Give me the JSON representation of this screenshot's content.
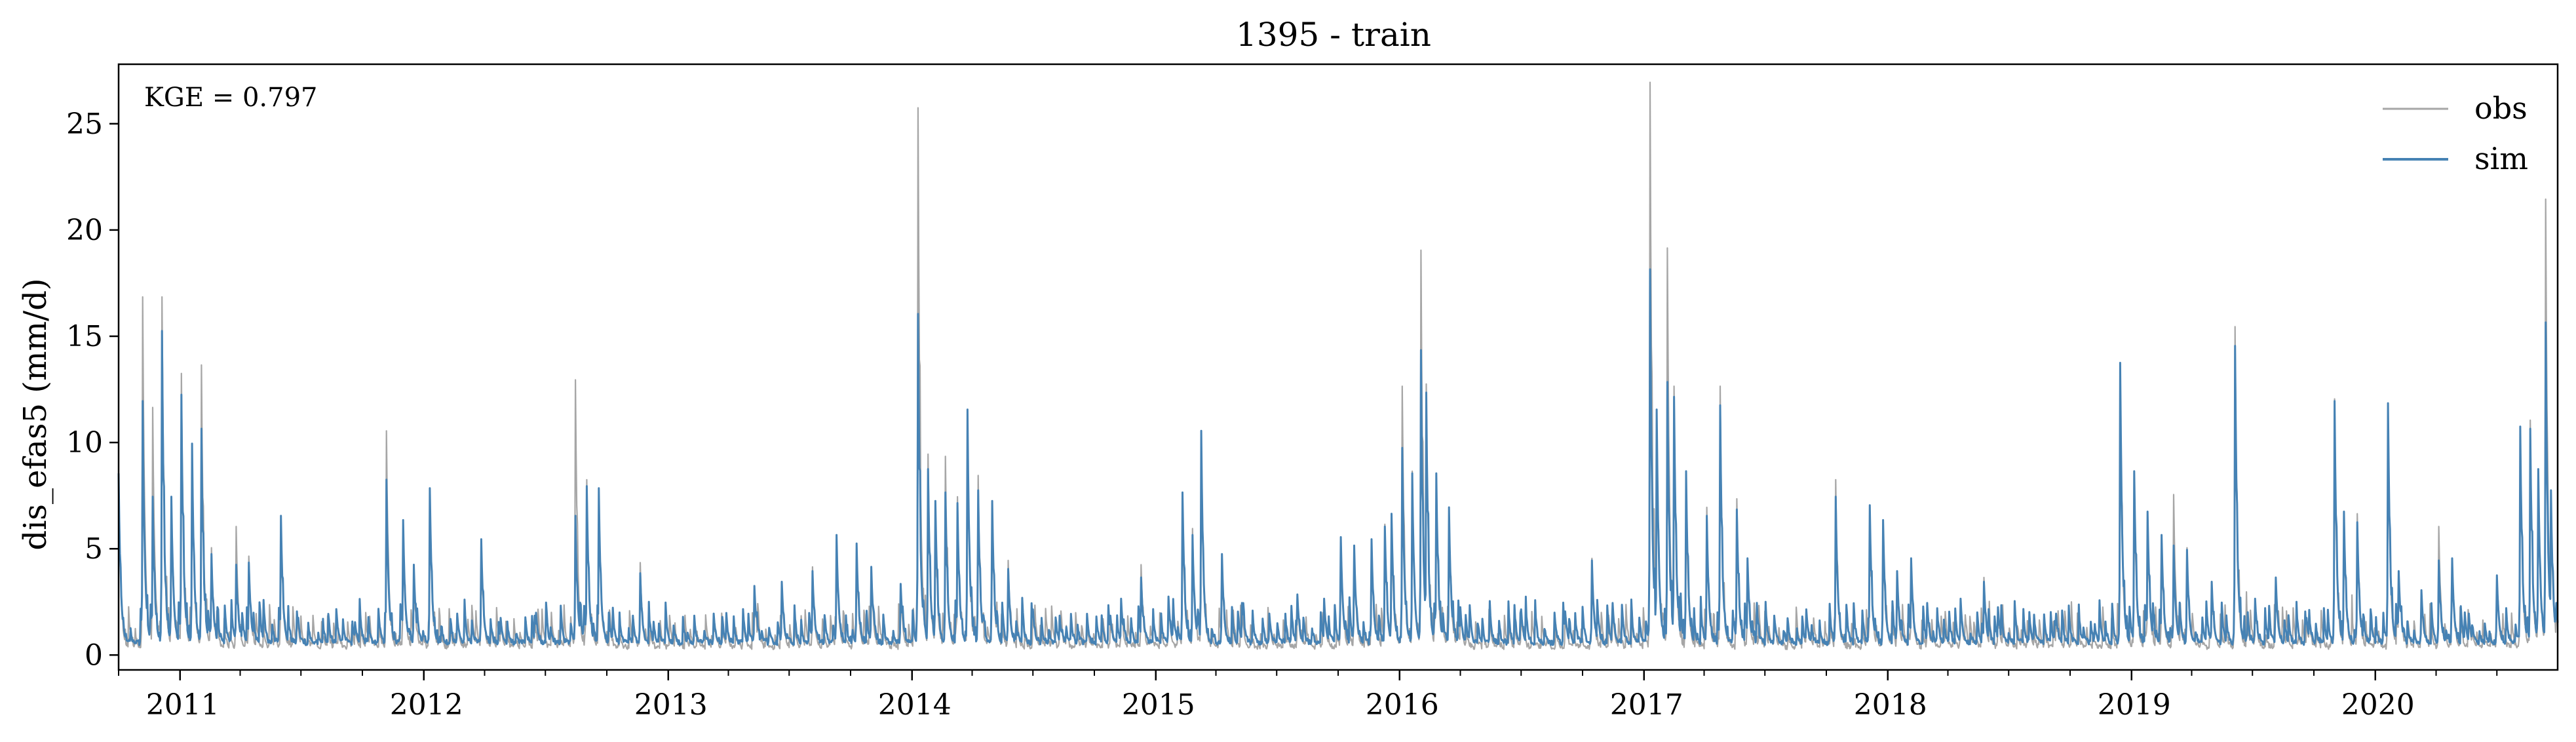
{
  "chart_data": {
    "type": "line",
    "title": "1395 - train",
    "ylabel": "dis_efas5 (mm/d)",
    "xlabel": "",
    "xlim": [
      "2010-10-01",
      "2020-09-30"
    ],
    "ylim": [
      -0.7,
      27.8
    ],
    "yticks": [
      0,
      5,
      10,
      15,
      20,
      25
    ],
    "xticks": [
      "2011",
      "2012",
      "2013",
      "2014",
      "2015",
      "2016",
      "2017",
      "2018",
      "2019",
      "2020"
    ],
    "grid": false,
    "legend_position": "top-right",
    "annotation": "KGE = 0.797",
    "series": [
      {
        "name": "obs",
        "color": "#a6a6a6",
        "peaks": [
          [
            "2010-10-01",
            8.0
          ],
          [
            "2010-11-06",
            16.6
          ],
          [
            "2010-11-21",
            11.4
          ],
          [
            "2010-12-05",
            16.6
          ],
          [
            "2010-12-19",
            6.9
          ],
          [
            "2011-01-03",
            13.0
          ],
          [
            "2011-01-19",
            9.5
          ],
          [
            "2011-02-02",
            13.4
          ],
          [
            "2011-02-17",
            4.8
          ],
          [
            "2011-03-26",
            5.8
          ],
          [
            "2011-04-14",
            4.4
          ],
          [
            "2011-06-01",
            6.3
          ],
          [
            "2011-06-25",
            1.8
          ],
          [
            "2011-09-20",
            1.2
          ],
          [
            "2011-11-06",
            10.3
          ],
          [
            "2011-12-01",
            5.9
          ],
          [
            "2011-12-17",
            3.6
          ],
          [
            "2012-01-10",
            7.4
          ],
          [
            "2012-02-20",
            1.7
          ],
          [
            "2012-03-27",
            5.0
          ],
          [
            "2012-04-25",
            1.4
          ],
          [
            "2012-06-15",
            1.5
          ],
          [
            "2012-08-15",
            12.7
          ],
          [
            "2012-09-01",
            8.0
          ],
          [
            "2012-09-19",
            7.6
          ],
          [
            "2012-11-20",
            4.1
          ],
          [
            "2013-03-10",
            1.6
          ],
          [
            "2013-05-10",
            2.9
          ],
          [
            "2013-06-20",
            3.2
          ],
          [
            "2013-08-05",
            3.9
          ],
          [
            "2013-09-10",
            5.2
          ],
          [
            "2013-10-10",
            4.9
          ],
          [
            "2013-11-01",
            3.9
          ],
          [
            "2013-12-15",
            3.1
          ],
          [
            "2014-01-10",
            25.5
          ],
          [
            "2014-01-25",
            9.2
          ],
          [
            "2014-02-05",
            6.5
          ],
          [
            "2014-02-20",
            9.1
          ],
          [
            "2014-03-10",
            7.2
          ],
          [
            "2014-03-25",
            10.8
          ],
          [
            "2014-04-10",
            8.2
          ],
          [
            "2014-05-01",
            7.0
          ],
          [
            "2014-05-25",
            4.2
          ],
          [
            "2014-07-01",
            1.9
          ],
          [
            "2014-08-10",
            1.6
          ],
          [
            "2014-09-20",
            1.2
          ],
          [
            "2014-10-25",
            1.5
          ],
          [
            "2014-11-10",
            2.3
          ],
          [
            "2014-12-10",
            4.0
          ],
          [
            "2015-01-20",
            2.5
          ],
          [
            "2015-02-10",
            7.2
          ],
          [
            "2015-02-25",
            5.7
          ],
          [
            "2015-03-10",
            10.2
          ],
          [
            "2015-04-10",
            4.5
          ],
          [
            "2015-05-10",
            2.1
          ],
          [
            "2015-06-20",
            1.6
          ],
          [
            "2015-08-01",
            2.5
          ],
          [
            "2015-09-10",
            2.3
          ],
          [
            "2015-10-05",
            5.2
          ],
          [
            "2015-10-25",
            4.9
          ],
          [
            "2015-11-20",
            5.2
          ],
          [
            "2015-12-10",
            5.9
          ],
          [
            "2015-12-20",
            6.3
          ],
          [
            "2016-01-05",
            12.4
          ],
          [
            "2016-01-20",
            8.4
          ],
          [
            "2016-02-02",
            18.8
          ],
          [
            "2016-02-10",
            12.5
          ],
          [
            "2016-02-25",
            8.3
          ],
          [
            "2016-03-15",
            6.6
          ],
          [
            "2016-04-01",
            1.9
          ],
          [
            "2016-05-15",
            1.5
          ],
          [
            "2016-07-01",
            1.8
          ],
          [
            "2016-09-05",
            1.7
          ],
          [
            "2016-10-15",
            4.3
          ],
          [
            "2016-11-15",
            2.1
          ],
          [
            "2017-01-10",
            26.7
          ],
          [
            "2017-01-20",
            11.3
          ],
          [
            "2017-02-05",
            18.9
          ],
          [
            "2017-02-15",
            12.4
          ],
          [
            "2017-03-05",
            8.3
          ],
          [
            "2017-04-05",
            6.7
          ],
          [
            "2017-04-25",
            12.4
          ],
          [
            "2017-05-20",
            7.1
          ],
          [
            "2017-06-05",
            4.3
          ],
          [
            "2017-07-15",
            1.5
          ],
          [
            "2017-09-01",
            1.8
          ],
          [
            "2017-10-15",
            8.0
          ],
          [
            "2017-12-05",
            6.5
          ],
          [
            "2017-12-25",
            5.9
          ],
          [
            "2018-01-15",
            3.6
          ],
          [
            "2018-02-05",
            4.2
          ],
          [
            "2018-03-01",
            2.1
          ],
          [
            "2018-04-20",
            2.3
          ],
          [
            "2018-05-25",
            3.4
          ],
          [
            "2018-06-15",
            1.9
          ],
          [
            "2018-08-01",
            1.5
          ],
          [
            "2018-09-10",
            1.6
          ],
          [
            "2018-12-15",
            13.4
          ],
          [
            "2019-01-05",
            8.3
          ],
          [
            "2019-01-25",
            6.3
          ],
          [
            "2019-02-15",
            5.3
          ],
          [
            "2019-03-05",
            7.3
          ],
          [
            "2019-03-25",
            4.8
          ],
          [
            "2019-05-01",
            3.1
          ],
          [
            "2019-06-05",
            15.2
          ],
          [
            "2019-07-05",
            2.3
          ],
          [
            "2019-08-05",
            3.3
          ],
          [
            "2019-09-20",
            1.4
          ],
          [
            "2019-11-01",
            11.8
          ],
          [
            "2019-11-15",
            6.4
          ],
          [
            "2019-12-05",
            6.4
          ],
          [
            "2020-01-20",
            11.3
          ],
          [
            "2020-02-05",
            3.6
          ],
          [
            "2020-03-10",
            2.7
          ],
          [
            "2020-04-05",
            5.8
          ],
          [
            "2020-04-25",
            4.2
          ],
          [
            "2020-05-20",
            1.6
          ],
          [
            "2020-07-01",
            3.4
          ],
          [
            "2020-08-05",
            10.5
          ],
          [
            "2020-08-20",
            10.8
          ],
          [
            "2020-09-01",
            8.3
          ],
          [
            "2020-09-12",
            21.2
          ],
          [
            "2020-09-20",
            7.3
          ],
          [
            "2020-09-28",
            2.0
          ]
        ]
      },
      {
        "name": "sim",
        "color": "#4682b4",
        "peaks": [
          [
            "2010-10-01",
            8.1
          ],
          [
            "2010-11-06",
            11.5
          ],
          [
            "2010-11-21",
            7.0
          ],
          [
            "2010-12-05",
            14.8
          ],
          [
            "2010-12-19",
            7.0
          ],
          [
            "2011-01-03",
            11.8
          ],
          [
            "2011-01-19",
            9.5
          ],
          [
            "2011-02-02",
            10.2
          ],
          [
            "2011-02-17",
            4.3
          ],
          [
            "2011-03-26",
            3.8
          ],
          [
            "2011-04-14",
            3.9
          ],
          [
            "2011-06-01",
            6.1
          ],
          [
            "2011-06-25",
            1.6
          ],
          [
            "2011-09-20",
            1.1
          ],
          [
            "2011-11-06",
            7.8
          ],
          [
            "2011-12-01",
            5.9
          ],
          [
            "2011-12-17",
            3.8
          ],
          [
            "2012-01-10",
            7.4
          ],
          [
            "2012-02-20",
            1.5
          ],
          [
            "2012-03-27",
            5.0
          ],
          [
            "2012-04-25",
            1.3
          ],
          [
            "2012-06-15",
            1.4
          ],
          [
            "2012-08-15",
            6.1
          ],
          [
            "2012-09-01",
            7.5
          ],
          [
            "2012-09-19",
            7.4
          ],
          [
            "2012-11-20",
            3.4
          ],
          [
            "2013-03-10",
            1.5
          ],
          [
            "2013-05-10",
            2.8
          ],
          [
            "2013-06-20",
            3.0
          ],
          [
            "2013-08-05",
            3.5
          ],
          [
            "2013-09-10",
            5.2
          ],
          [
            "2013-10-10",
            4.8
          ],
          [
            "2013-11-01",
            3.7
          ],
          [
            "2013-12-15",
            2.9
          ],
          [
            "2014-01-10",
            15.6
          ],
          [
            "2014-01-25",
            8.3
          ],
          [
            "2014-02-05",
            6.8
          ],
          [
            "2014-02-20",
            7.2
          ],
          [
            "2014-03-10",
            6.7
          ],
          [
            "2014-03-25",
            11.1
          ],
          [
            "2014-04-10",
            7.3
          ],
          [
            "2014-05-01",
            6.8
          ],
          [
            "2014-05-25",
            3.6
          ],
          [
            "2014-07-01",
            1.7
          ],
          [
            "2014-08-10",
            1.4
          ],
          [
            "2014-09-20",
            1.1
          ],
          [
            "2014-10-25",
            1.4
          ],
          [
            "2014-11-10",
            2.2
          ],
          [
            "2014-12-10",
            3.2
          ],
          [
            "2015-01-20",
            2.3
          ],
          [
            "2015-02-10",
            7.2
          ],
          [
            "2015-02-25",
            5.2
          ],
          [
            "2015-03-10",
            10.1
          ],
          [
            "2015-04-10",
            4.3
          ],
          [
            "2015-05-10",
            2.0
          ],
          [
            "2015-06-20",
            1.5
          ],
          [
            "2015-08-01",
            2.4
          ],
          [
            "2015-09-10",
            2.2
          ],
          [
            "2015-10-05",
            5.1
          ],
          [
            "2015-10-25",
            4.7
          ],
          [
            "2015-11-20",
            5.0
          ],
          [
            "2015-12-10",
            5.6
          ],
          [
            "2015-12-20",
            6.2
          ],
          [
            "2016-01-05",
            9.3
          ],
          [
            "2016-01-20",
            8.1
          ],
          [
            "2016-02-02",
            13.9
          ],
          [
            "2016-02-10",
            11.9
          ],
          [
            "2016-02-25",
            8.1
          ],
          [
            "2016-03-15",
            6.5
          ],
          [
            "2016-04-01",
            1.8
          ],
          [
            "2016-05-15",
            1.4
          ],
          [
            "2016-07-01",
            1.7
          ],
          [
            "2016-09-05",
            1.6
          ],
          [
            "2016-10-15",
            4.0
          ],
          [
            "2016-11-15",
            2.0
          ],
          [
            "2017-01-10",
            17.7
          ],
          [
            "2017-01-20",
            11.1
          ],
          [
            "2017-02-05",
            12.4
          ],
          [
            "2017-02-15",
            11.7
          ],
          [
            "2017-03-05",
            8.2
          ],
          [
            "2017-04-05",
            6.1
          ],
          [
            "2017-04-25",
            11.3
          ],
          [
            "2017-05-20",
            6.4
          ],
          [
            "2017-06-05",
            4.1
          ],
          [
            "2017-07-15",
            1.4
          ],
          [
            "2017-09-01",
            1.7
          ],
          [
            "2017-10-15",
            7.0
          ],
          [
            "2017-12-05",
            6.6
          ],
          [
            "2017-12-25",
            5.9
          ],
          [
            "2018-01-15",
            3.5
          ],
          [
            "2018-02-05",
            4.1
          ],
          [
            "2018-03-01",
            2.0
          ],
          [
            "2018-04-20",
            2.2
          ],
          [
            "2018-05-25",
            3.0
          ],
          [
            "2018-06-15",
            1.8
          ],
          [
            "2018-08-01",
            1.4
          ],
          [
            "2018-09-10",
            1.5
          ],
          [
            "2018-12-15",
            13.3
          ],
          [
            "2019-01-05",
            8.2
          ],
          [
            "2019-01-25",
            6.3
          ],
          [
            "2019-02-15",
            5.2
          ],
          [
            "2019-03-05",
            4.7
          ],
          [
            "2019-03-25",
            4.5
          ],
          [
            "2019-05-01",
            3.0
          ],
          [
            "2019-06-05",
            14.1
          ],
          [
            "2019-07-05",
            2.2
          ],
          [
            "2019-08-05",
            3.2
          ],
          [
            "2019-09-20",
            1.3
          ],
          [
            "2019-11-01",
            11.5
          ],
          [
            "2019-11-15",
            6.3
          ],
          [
            "2019-12-05",
            5.8
          ],
          [
            "2020-01-20",
            11.4
          ],
          [
            "2020-02-05",
            3.5
          ],
          [
            "2020-03-10",
            2.6
          ],
          [
            "2020-04-05",
            4.0
          ],
          [
            "2020-04-25",
            4.1
          ],
          [
            "2020-05-20",
            1.5
          ],
          [
            "2020-07-01",
            3.3
          ],
          [
            "2020-08-05",
            10.3
          ],
          [
            "2020-08-20",
            10.2
          ],
          [
            "2020-09-01",
            8.3
          ],
          [
            "2020-09-12",
            15.2
          ],
          [
            "2020-09-20",
            7.3
          ],
          [
            "2020-09-28",
            2.0
          ]
        ]
      }
    ]
  }
}
